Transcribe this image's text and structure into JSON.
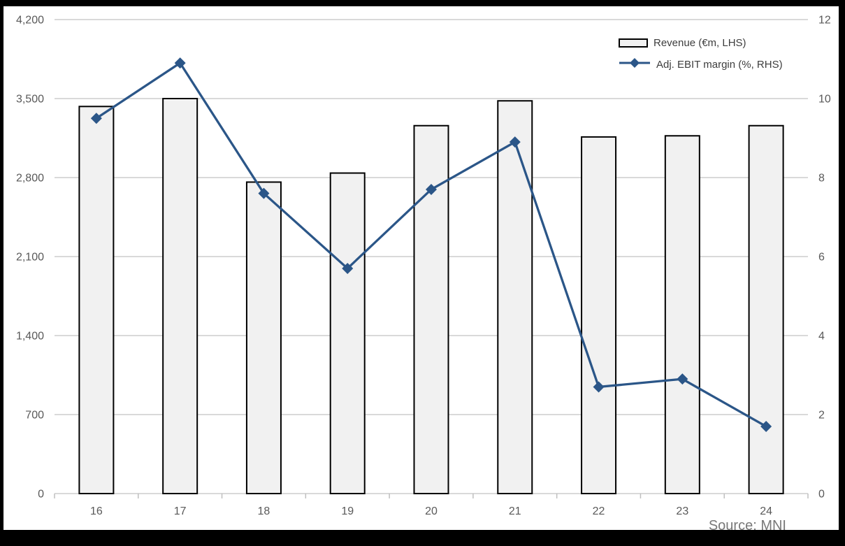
{
  "chart_data": {
    "type": "combo-bar-line",
    "categories": [
      "16",
      "17",
      "18",
      "19",
      "20",
      "21",
      "22",
      "23",
      "24"
    ],
    "series": [
      {
        "name": "Revenue (€m, LHS)",
        "type": "bar",
        "axis": "left",
        "values": [
          3430,
          3500,
          2760,
          2840,
          3260,
          3480,
          3160,
          3170,
          3260
        ]
      },
      {
        "name": "Adj. EBIT margin (%, RHS)",
        "type": "line",
        "axis": "right",
        "values": [
          9.5,
          10.9,
          7.6,
          5.7,
          7.7,
          8.9,
          2.7,
          2.9,
          1.7
        ]
      }
    ],
    "left_axis": {
      "min": 0,
      "max": 4200,
      "step": 700,
      "tick_labels": [
        "0",
        "700",
        "1,400",
        "2,100",
        "2,800",
        "3,500",
        "4,200"
      ]
    },
    "right_axis": {
      "min": 0,
      "max": 12,
      "step": 2,
      "tick_labels": [
        "0",
        "2",
        "4",
        "6",
        "8",
        "10",
        "12"
      ]
    },
    "legend": {
      "position": "top-right",
      "entries": [
        "Revenue (€m, LHS)",
        "Adj. EBIT margin (%, RHS)"
      ]
    },
    "source_note": "Source: MNI",
    "grid": true,
    "colors": {
      "background": "#ffffff",
      "frame": "#000000",
      "bar_fill": "#f1f1f1",
      "bar_border": "#000000",
      "line": "#2b5688",
      "gridline": "#d9d9d9",
      "axis_tick": "#bfbfbf",
      "axis_text": "#595959",
      "legend_text": "#3d3d3d",
      "source_text": "#787878"
    }
  }
}
